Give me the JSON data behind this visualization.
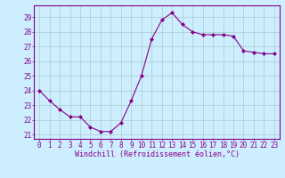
{
  "x": [
    0,
    1,
    2,
    3,
    4,
    5,
    6,
    7,
    8,
    9,
    10,
    11,
    12,
    13,
    14,
    15,
    16,
    17,
    18,
    19,
    20,
    21,
    22,
    23
  ],
  "y": [
    24.0,
    23.3,
    22.7,
    22.2,
    22.2,
    21.5,
    21.2,
    21.2,
    21.8,
    23.3,
    25.0,
    27.5,
    28.8,
    29.3,
    28.5,
    28.0,
    27.8,
    27.8,
    27.8,
    27.7,
    26.7,
    26.6,
    26.5,
    26.5
  ],
  "line_color": "#880088",
  "marker": "D",
  "marker_size": 2.0,
  "bg_color": "#cceeff",
  "grid_color": "#aacccc",
  "xlabel": "Windchill (Refroidissement éolien,°C)",
  "ylim": [
    20.7,
    29.8
  ],
  "xlim": [
    -0.5,
    23.5
  ],
  "yticks": [
    21,
    22,
    23,
    24,
    25,
    26,
    27,
    28,
    29
  ],
  "xticks": [
    0,
    1,
    2,
    3,
    4,
    5,
    6,
    7,
    8,
    9,
    10,
    11,
    12,
    13,
    14,
    15,
    16,
    17,
    18,
    19,
    20,
    21,
    22,
    23
  ],
  "tick_color": "#880088",
  "label_color": "#880088",
  "tick_fontsize": 5.5,
  "xlabel_fontsize": 6.0
}
